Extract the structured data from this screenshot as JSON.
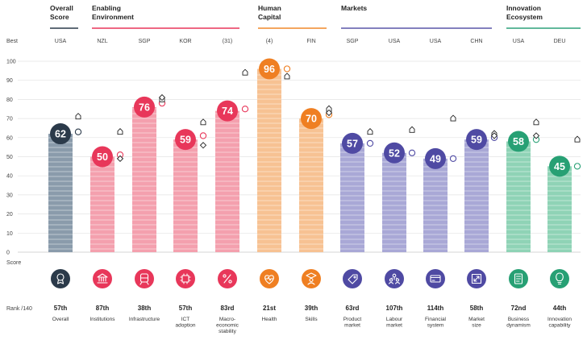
{
  "pillars": [
    {
      "label": "Overall\nScore",
      "color": "#2b3a4a"
    },
    {
      "label": "Enabling\nEnvironment",
      "color": "#e8375a"
    },
    {
      "label": "Human\nCapital",
      "color": "#f0892a"
    },
    {
      "label": "Markets",
      "color": "#5a56a8"
    },
    {
      "label": "Innovation\nEcosystem",
      "color": "#2fa27a"
    }
  ],
  "row_labels": {
    "best": "Best",
    "score": "Score",
    "rank": "Rank /140"
  },
  "chart_data": {
    "type": "bar",
    "ylim": [
      0,
      100
    ],
    "yticks": [
      0,
      10,
      20,
      30,
      40,
      50,
      60,
      70,
      80,
      90,
      100
    ],
    "grid": true,
    "categories": [
      "Overall",
      "Institutions",
      "Infrastructure",
      "ICT\nadoption",
      "Macro-\neconomic\nstability",
      "Health",
      "Skills",
      "Product\nmarket",
      "Labour\nmarket",
      "Financial\nsystem",
      "Market\nsize",
      "Business\ndynamism",
      "Innovation\ncapability"
    ],
    "best": [
      "USA",
      "NZL",
      "SGP",
      "KOR",
      "(31)",
      "(4)",
      "FIN",
      "SGP",
      "USA",
      "USA",
      "CHN",
      "USA",
      "DEU"
    ],
    "values": [
      62,
      50,
      76,
      59,
      74,
      96,
      70,
      57,
      52,
      49,
      59,
      58,
      45
    ],
    "ranks": [
      "57th",
      "87th",
      "38th",
      "57th",
      "83rd",
      "21st",
      "39th",
      "63rd",
      "107th",
      "114th",
      "58th",
      "72nd",
      "44th"
    ],
    "pillar_index": [
      0,
      1,
      1,
      1,
      1,
      2,
      2,
      3,
      3,
      3,
      3,
      4,
      4
    ],
    "comparison_circle": [
      63,
      51,
      78,
      61,
      75,
      96,
      72,
      57,
      52,
      49,
      60,
      59,
      45
    ],
    "comparison_house": [
      71,
      63,
      80,
      68,
      94,
      92,
      75,
      63,
      64,
      70,
      62,
      68,
      59
    ],
    "comparison_diamond": [
      null,
      49,
      81,
      56,
      null,
      null,
      73,
      null,
      null,
      null,
      61,
      61,
      null
    ],
    "colors": {
      "overall_bar": "#8a9bab",
      "overall_dot": "#2b3a4a",
      "enabling_bar": "#f4a0ae",
      "enabling_dot": "#e8375a",
      "human_bar": "#f7c293",
      "human_dot": "#ef7f22",
      "markets_bar": "#a9a8d6",
      "markets_dot": "#4f4aa3",
      "innovation_bar": "#8fd3b6",
      "innovation_dot": "#27a074"
    },
    "icons": [
      "award-icon",
      "bank-icon",
      "train-icon",
      "chip-icon",
      "percent-icon",
      "heart-pulse-icon",
      "graduate-icon",
      "tag-icon",
      "people-icon",
      "card-icon",
      "resize-icon",
      "document-icon",
      "bulb-icon"
    ]
  }
}
